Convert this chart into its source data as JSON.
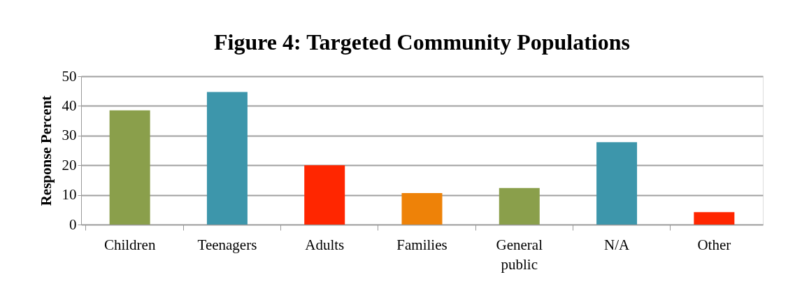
{
  "chart_data": {
    "type": "bar",
    "title": "Figure 4: Targeted Community Populations",
    "ylabel": "Response Percent",
    "categories": [
      "Children",
      "Teenagers",
      "Adults",
      "Families",
      "General public",
      "N/A",
      "Other"
    ],
    "values": [
      38.5,
      44.7,
      20,
      10.6,
      12.3,
      27.8,
      4.2
    ],
    "colors": [
      "#8a9f4b",
      "#3d96ab",
      "#ff2600",
      "#ee8208",
      "#8a9f4b",
      "#3d96ab",
      "#ff2600"
    ],
    "ylim": [
      0,
      50
    ],
    "yticks": [
      0,
      10,
      20,
      30,
      40,
      50
    ],
    "grid": "y"
  }
}
